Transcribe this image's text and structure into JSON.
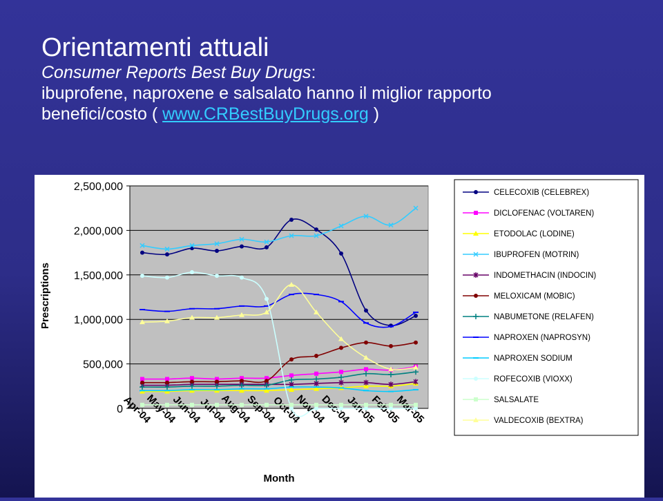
{
  "slide": {
    "title": "Orientamenti attuali",
    "subtitle_italic": "Consumer Reports Best Buy Drugs",
    "subtitle_colon": ":",
    "line2": "ibuprofene, naproxene e salsalato hanno il miglior rapporto",
    "line3_prefix": "benefici/costo ( ",
    "link_text": "www.CRBestBuyDrugs.org",
    "line3_suffix": " )"
  },
  "colors": {
    "background": "#333399",
    "text": "#ffffff",
    "link": "#33ccff",
    "plot_area": "#c0c0c0"
  },
  "chart_data": {
    "type": "line",
    "title": "",
    "xlabel": "Month",
    "ylabel": "Prescriptions",
    "categories": [
      "Apr-04",
      "May-04",
      "Jun-04",
      "Jul-04",
      "Aug-04",
      "Sep-04",
      "Oct-04",
      "Nov-04",
      "Dec-04",
      "Jan-05",
      "Feb-05",
      "Mar-05"
    ],
    "ylim": [
      0,
      2500000
    ],
    "yticks": [
      0,
      500000,
      1000000,
      1500000,
      2000000,
      2500000
    ],
    "ytick_labels": [
      "0",
      "500,000",
      "1,000,000",
      "1,500,000",
      "2,000,000",
      "2,500,000"
    ],
    "grid": true,
    "legend_position": "right",
    "series": [
      {
        "name": "CELECOXIB (CELEBREX)",
        "color": "#000080",
        "marker": "circle",
        "values": [
          1750000,
          1730000,
          1800000,
          1770000,
          1820000,
          1810000,
          2120000,
          2010000,
          1740000,
          1100000,
          930000,
          1040000
        ]
      },
      {
        "name": "DICLOFENAC (VOLTAREN)",
        "color": "#ff00ff",
        "marker": "square",
        "values": [
          330000,
          330000,
          340000,
          330000,
          340000,
          340000,
          370000,
          390000,
          410000,
          440000,
          430000,
          470000
        ]
      },
      {
        "name": "ETODOLAC (LODINE)",
        "color": "#ffff00",
        "marker": "triangle",
        "values": [
          190000,
          190000,
          200000,
          200000,
          200000,
          200000,
          210000,
          220000,
          230000,
          250000,
          250000,
          280000
        ]
      },
      {
        "name": "IBUPROFEN (MOTRIN)",
        "color": "#33ccff",
        "marker": "x",
        "values": [
          1830000,
          1790000,
          1830000,
          1850000,
          1900000,
          1870000,
          1940000,
          1940000,
          2050000,
          2160000,
          2060000,
          2250000
        ]
      },
      {
        "name": "INDOMETHACIN (INDOCIN)",
        "color": "#660066",
        "marker": "star",
        "values": [
          260000,
          260000,
          270000,
          270000,
          270000,
          270000,
          270000,
          280000,
          290000,
          290000,
          270000,
          300000
        ]
      },
      {
        "name": "MELOXICAM (MOBIC)",
        "color": "#800000",
        "marker": "circle",
        "values": [
          290000,
          290000,
          300000,
          300000,
          310000,
          310000,
          550000,
          590000,
          680000,
          740000,
          700000,
          740000
        ]
      },
      {
        "name": "NABUMETONE (RELAFEN)",
        "color": "#008080",
        "marker": "plus",
        "values": [
          240000,
          240000,
          250000,
          250000,
          260000,
          260000,
          320000,
          330000,
          350000,
          390000,
          380000,
          410000
        ]
      },
      {
        "name": "NAPROXEN (NAPROSYN)",
        "color": "#0000ff",
        "marker": "dash",
        "values": [
          1110000,
          1090000,
          1120000,
          1120000,
          1150000,
          1150000,
          1280000,
          1280000,
          1200000,
          960000,
          920000,
          1080000
        ]
      },
      {
        "name": "NAPROXEN SODIUM",
        "color": "#00ccff",
        "marker": "dash",
        "values": [
          200000,
          200000,
          210000,
          210000,
          220000,
          220000,
          240000,
          240000,
          230000,
          200000,
          190000,
          210000
        ]
      },
      {
        "name": "ROFECOXIB (VIOXX)",
        "color": "#ccffff",
        "marker": "circle",
        "values": [
          1490000,
          1470000,
          1530000,
          1490000,
          1470000,
          1230000,
          0,
          0,
          0,
          0,
          0,
          0
        ]
      },
      {
        "name": "SALSALATE",
        "color": "#ccffcc",
        "marker": "square",
        "values": [
          40000,
          40000,
          40000,
          40000,
          40000,
          40000,
          40000,
          40000,
          40000,
          40000,
          40000,
          40000
        ]
      },
      {
        "name": "VALDECOXIB (BEXTRA)",
        "color": "#ffff99",
        "marker": "triangle",
        "values": [
          970000,
          980000,
          1020000,
          1020000,
          1050000,
          1080000,
          1390000,
          1080000,
          780000,
          570000,
          440000,
          460000
        ]
      }
    ]
  }
}
